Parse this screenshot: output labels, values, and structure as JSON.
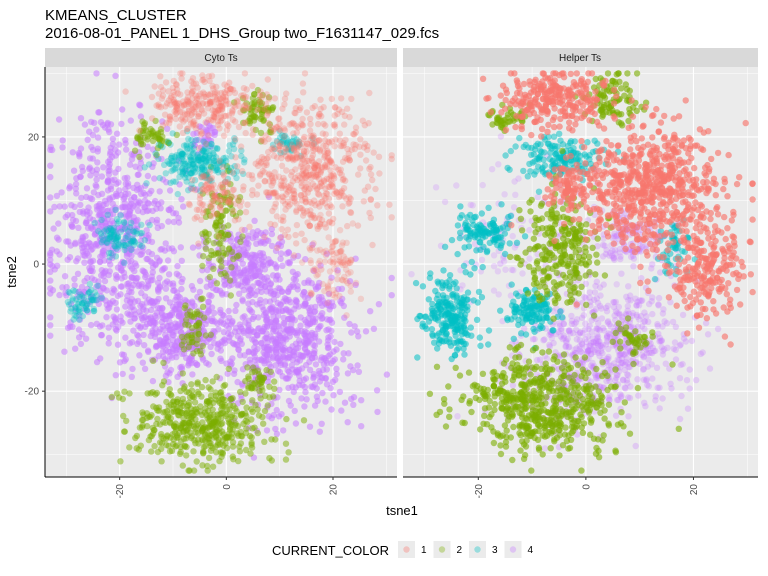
{
  "title_line1": "KMEANS_CLUSTER",
  "title_line2": "2016-08-01_PANEL 1_DHS_Group two_F1631147_029.fcs",
  "colors": {
    "panel_bg": "#ebebeb",
    "grid": "#ffffff",
    "strip_bg": "#d9d9d9",
    "cluster_1": "#F8766D",
    "cluster_2": "#7CAE00",
    "cluster_3": "#00BFC4",
    "cluster_4": "#C77CFF"
  },
  "chart_data": {
    "type": "scatter",
    "xlabel": "tsne1",
    "ylabel": "tsne2",
    "xlim": [
      -34,
      32
    ],
    "ylim": [
      -33.5,
      31
    ],
    "x_ticks": [
      -20,
      0,
      20
    ],
    "x_tick_labels": [
      "-20",
      "0",
      "20"
    ],
    "y_ticks": [
      -20,
      0,
      20
    ],
    "y_tick_labels": [
      "-20",
      "0",
      "20"
    ],
    "grid": true,
    "legend": {
      "title": "CURRENT_COLOR",
      "position": "bottom",
      "entries": [
        "1",
        "2",
        "3",
        "4"
      ]
    },
    "facets": [
      {
        "label": "Cyto Ts",
        "clusters": [
          {
            "name": "4",
            "blobs": [
              {
                "x": -21,
                "y": 5,
                "rx": 11,
                "ry": 16,
                "n": 700,
                "a": 0.55
              },
              {
                "x": -9,
                "y": -10,
                "rx": 9,
                "ry": 6,
                "n": 350,
                "a": 0.55
              },
              {
                "x": 11,
                "y": -12,
                "rx": 12,
                "ry": 11,
                "n": 650,
                "a": 0.55
              },
              {
                "x": 4,
                "y": 0,
                "rx": 7,
                "ry": 6,
                "n": 220,
                "a": 0.55
              },
              {
                "x": -4,
                "y": 20,
                "rx": 2,
                "ry": 2,
                "n": 30,
                "a": 0.55
              }
            ]
          },
          {
            "name": "2",
            "blobs": [
              {
                "x": -5,
                "y": -25,
                "rx": 11,
                "ry": 6,
                "n": 450,
                "a": 0.5
              },
              {
                "x": -1,
                "y": 6,
                "rx": 3,
                "ry": 7,
                "n": 110,
                "a": 0.5
              },
              {
                "x": 6,
                "y": 24,
                "rx": 3,
                "ry": 3,
                "n": 60,
                "a": 0.5
              },
              {
                "x": -14,
                "y": 20,
                "rx": 3,
                "ry": 2,
                "n": 50,
                "a": 0.5
              },
              {
                "x": -6,
                "y": -10,
                "rx": 2.5,
                "ry": 4,
                "n": 50,
                "a": 0.5
              },
              {
                "x": 6,
                "y": -19,
                "rx": 3,
                "ry": 2,
                "n": 40,
                "a": 0.5
              }
            ]
          },
          {
            "name": "3",
            "blobs": [
              {
                "x": -5,
                "y": 16,
                "rx": 7,
                "ry": 3.5,
                "n": 220,
                "a": 0.35
              },
              {
                "x": -20,
                "y": 4,
                "rx": 4,
                "ry": 3,
                "n": 90,
                "a": 0.35
              },
              {
                "x": -27,
                "y": -6,
                "rx": 3,
                "ry": 2.5,
                "n": 60,
                "a": 0.35
              },
              {
                "x": 12,
                "y": 19,
                "rx": 3,
                "ry": 1.5,
                "n": 40,
                "a": 0.35
              }
            ]
          },
          {
            "name": "1",
            "blobs": [
              {
                "x": 15,
                "y": 15,
                "rx": 11,
                "ry": 10,
                "n": 550,
                "a": 0.3
              },
              {
                "x": -4,
                "y": 25,
                "rx": 9,
                "ry": 4,
                "n": 260,
                "a": 0.3
              },
              {
                "x": -2,
                "y": 11,
                "rx": 4,
                "ry": 4,
                "n": 90,
                "a": 0.3
              },
              {
                "x": 20,
                "y": 0,
                "rx": 5,
                "ry": 6,
                "n": 90,
                "a": 0.25
              }
            ]
          }
        ]
      },
      {
        "label": "Helper Ts",
        "clusters": [
          {
            "name": "4",
            "blobs": [
              {
                "x": 4,
                "y": -13,
                "rx": 13,
                "ry": 9,
                "n": 600,
                "a": 0.3
              },
              {
                "x": -12,
                "y": 4,
                "rx": 15,
                "ry": 10,
                "n": 120,
                "a": 0.25
              },
              {
                "x": 8,
                "y": 4,
                "rx": 6,
                "ry": 4,
                "n": 120,
                "a": 0.3
              },
              {
                "x": -6,
                "y": -20,
                "rx": 10,
                "ry": 6,
                "n": 80,
                "a": 0.25
              }
            ]
          },
          {
            "name": "3",
            "blobs": [
              {
                "x": -25,
                "y": -8,
                "rx": 5,
                "ry": 6,
                "n": 220,
                "a": 0.55
              },
              {
                "x": -10,
                "y": -7,
                "rx": 4,
                "ry": 3,
                "n": 120,
                "a": 0.55
              },
              {
                "x": -19,
                "y": 5,
                "rx": 5,
                "ry": 3,
                "n": 110,
                "a": 0.55
              },
              {
                "x": -5,
                "y": 17,
                "rx": 7,
                "ry": 3,
                "n": 150,
                "a": 0.5
              },
              {
                "x": 16,
                "y": 2,
                "rx": 3,
                "ry": 4,
                "n": 50,
                "a": 0.5
              }
            ]
          },
          {
            "name": "2",
            "blobs": [
              {
                "x": -8,
                "y": -22,
                "rx": 13,
                "ry": 7,
                "n": 550,
                "a": 0.6
              },
              {
                "x": -5,
                "y": 2,
                "rx": 6,
                "ry": 8,
                "n": 250,
                "a": 0.6
              },
              {
                "x": 5,
                "y": 26,
                "rx": 5,
                "ry": 4,
                "n": 90,
                "a": 0.6
              },
              {
                "x": -15,
                "y": 23,
                "rx": 3,
                "ry": 2,
                "n": 40,
                "a": 0.6
              },
              {
                "x": 9,
                "y": -12,
                "rx": 3,
                "ry": 2,
                "n": 40,
                "a": 0.6
              }
            ]
          },
          {
            "name": "1",
            "blobs": [
              {
                "x": 12,
                "y": 12,
                "rx": 12,
                "ry": 9,
                "n": 650,
                "a": 0.65
              },
              {
                "x": -6,
                "y": 26,
                "rx": 9,
                "ry": 4,
                "n": 250,
                "a": 0.65
              },
              {
                "x": 23,
                "y": -1,
                "rx": 6,
                "ry": 7,
                "n": 200,
                "a": 0.65
              },
              {
                "x": -3,
                "y": 12,
                "rx": 4,
                "ry": 3,
                "n": 80,
                "a": 0.65
              }
            ]
          }
        ]
      }
    ]
  }
}
